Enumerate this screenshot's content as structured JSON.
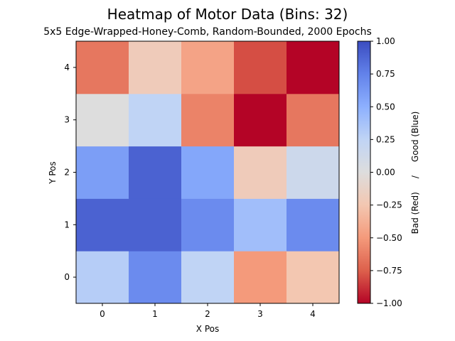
{
  "chart_data": {
    "type": "heatmap",
    "title": "Heatmap of Motor Data (Bins: 32)",
    "subtitle": "5x5 Edge-Wrapped-Honey-Comb, Random-Bounded, 2000 Epochs",
    "xlabel": "X Pos",
    "ylabel": "Y Pos",
    "x_categories": [
      "0",
      "1",
      "2",
      "3",
      "4"
    ],
    "y_categories": [
      "0",
      "1",
      "2",
      "3",
      "4"
    ],
    "values": [
      [
        0.3,
        0.7,
        0.25,
        -0.5,
        -0.25
      ],
      [
        0.9,
        0.9,
        0.7,
        0.4,
        0.7
      ],
      [
        0.6,
        0.9,
        0.55,
        -0.2,
        0.15
      ],
      [
        0.0,
        0.25,
        -0.6,
        -1.0,
        -0.65
      ],
      [
        -0.65,
        -0.2,
        -0.45,
        -0.8,
        -1.0
      ]
    ],
    "vmin": -1.0,
    "vmax": 1.0,
    "colormap": "coolwarm_r",
    "colorbar": {
      "label": "Bad (Red)     /     Good (Blue)",
      "ticks": [
        "1.00",
        "0.75",
        "0.50",
        "0.25",
        "0.00",
        "−0.25",
        "−0.50",
        "−0.75",
        "−1.00"
      ],
      "tick_values": [
        1.0,
        0.75,
        0.5,
        0.25,
        0.0,
        -0.25,
        -0.5,
        -0.75,
        -1.0
      ]
    },
    "grid": false
  }
}
